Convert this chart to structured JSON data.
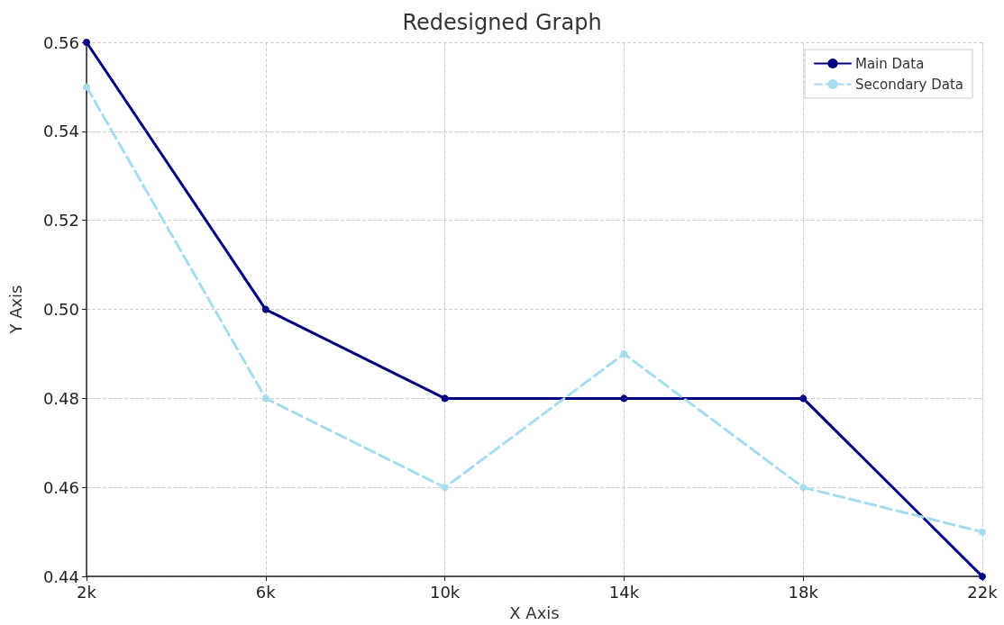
{
  "chart_data": {
    "type": "line",
    "title": "Redesigned Graph",
    "xlabel": "X Axis",
    "ylabel": "Y Axis",
    "x": [
      2000,
      6000,
      10000,
      14000,
      18000,
      22000
    ],
    "series": [
      {
        "name": "Main Data",
        "color": "#000080",
        "values": [
          0.56,
          0.5,
          0.48,
          0.48,
          0.48,
          0.44
        ],
        "line_style": "solid"
      },
      {
        "name": "Secondary Data",
        "color": "#a6dcef",
        "values": [
          0.55,
          0.48,
          0.46,
          0.49,
          0.46,
          0.45
        ],
        "line_style": "dashed"
      }
    ],
    "xlim": [
      2000,
      22000
    ],
    "xticks": [
      {
        "value": 2000,
        "label": "2k"
      },
      {
        "value": 6000,
        "label": "6k"
      },
      {
        "value": 10000,
        "label": "10k"
      },
      {
        "value": 14000,
        "label": "14k"
      },
      {
        "value": 18000,
        "label": "18k"
      },
      {
        "value": 22000,
        "label": "22k"
      }
    ],
    "ylim": [
      0.44,
      0.56
    ],
    "yticks": [
      0.44,
      0.46,
      0.48,
      {
        "value": 0.5,
        "label": "0.50"
      },
      0.52,
      0.54,
      0.56
    ],
    "grid": true,
    "legend": "top right",
    "marker": "circle"
  }
}
